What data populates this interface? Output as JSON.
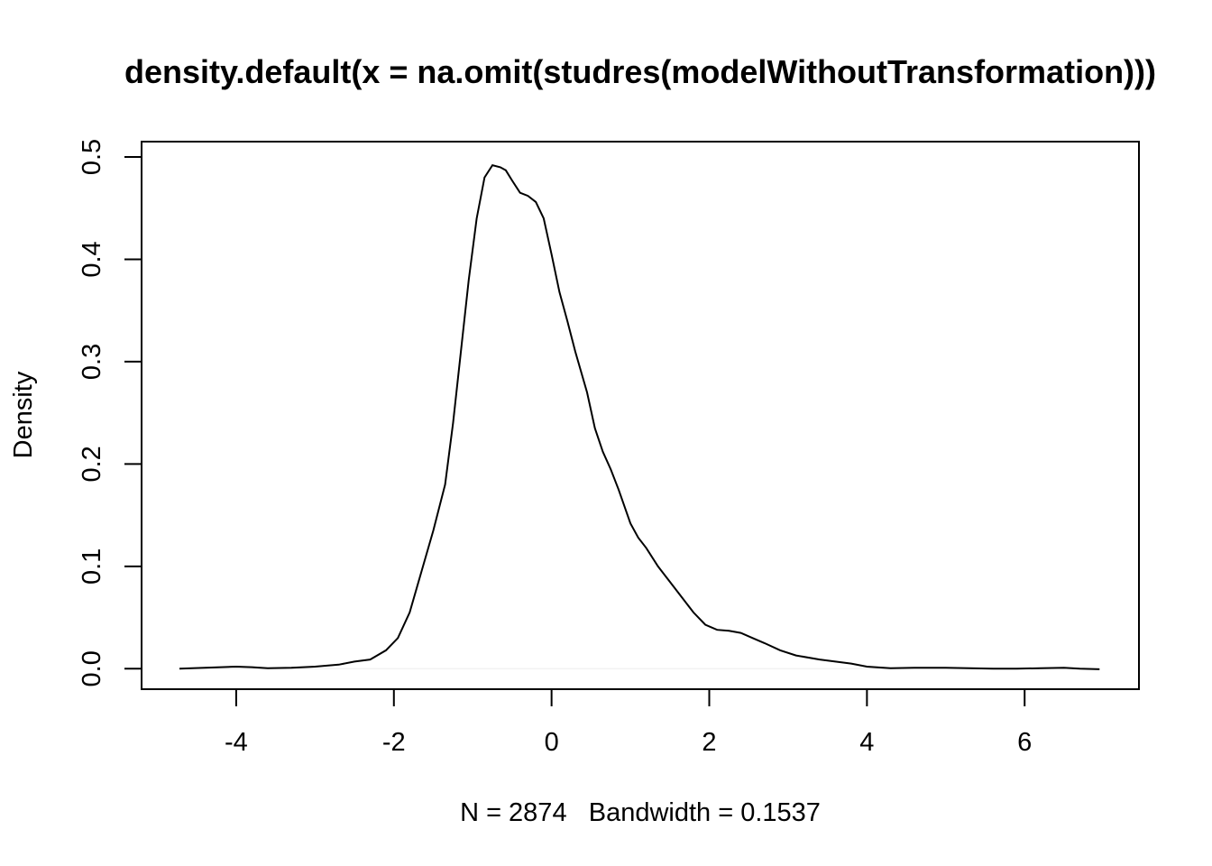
{
  "chart_data": {
    "type": "line",
    "title": "density.default(x = na.omit(studres(modelWithoutTransformation)))",
    "xlabel": "N = 2874   Bandwidth = 0.1537",
    "ylabel": "Density",
    "xlim": [
      -5.2,
      7.45
    ],
    "ylim": [
      -0.02,
      0.515
    ],
    "x_ticks": [
      -4,
      -2,
      0,
      2,
      4,
      6
    ],
    "x_tick_labels": [
      "-4",
      "-2",
      "0",
      "2",
      "4",
      "6"
    ],
    "y_ticks": [
      0.0,
      0.1,
      0.2,
      0.3,
      0.4,
      0.5
    ],
    "y_tick_labels": [
      "0.0",
      "0.1",
      "0.2",
      "0.3",
      "0.4",
      "0.5"
    ],
    "grid": false,
    "baseline_color": "#eeeeee",
    "series": [
      {
        "x": [
          -4.72,
          -4.4,
          -4.0,
          -3.8,
          -3.6,
          -3.3,
          -3.0,
          -2.7,
          -2.5,
          -2.3,
          -2.1,
          -1.95,
          -1.8,
          -1.65,
          -1.5,
          -1.35,
          -1.25,
          -1.15,
          -1.05,
          -0.95,
          -0.85,
          -0.75,
          -0.65,
          -0.58,
          -0.5,
          -0.4,
          -0.3,
          -0.2,
          -0.1,
          0.0,
          0.1,
          0.2,
          0.3,
          0.45,
          0.55,
          0.65,
          0.75,
          0.85,
          1.0,
          1.1,
          1.2,
          1.35,
          1.5,
          1.65,
          1.8,
          1.95,
          2.1,
          2.25,
          2.4,
          2.55,
          2.7,
          2.9,
          3.1,
          3.4,
          3.8,
          4.0,
          4.3,
          4.6,
          5.0,
          5.3,
          5.6,
          5.9,
          6.2,
          6.5,
          6.7,
          6.95
        ],
        "y": [
          0.0,
          0.001,
          0.002,
          0.0015,
          0.0005,
          0.001,
          0.002,
          0.004,
          0.007,
          0.009,
          0.018,
          0.03,
          0.055,
          0.095,
          0.135,
          0.18,
          0.24,
          0.31,
          0.38,
          0.44,
          0.48,
          0.492,
          0.49,
          0.487,
          0.477,
          0.465,
          0.462,
          0.456,
          0.44,
          0.405,
          0.368,
          0.34,
          0.31,
          0.27,
          0.235,
          0.212,
          0.195,
          0.175,
          0.142,
          0.128,
          0.118,
          0.1,
          0.085,
          0.07,
          0.055,
          0.043,
          0.038,
          0.037,
          0.035,
          0.03,
          0.025,
          0.018,
          0.013,
          0.009,
          0.005,
          0.002,
          0.0005,
          0.001,
          0.001,
          0.0005,
          0.0,
          0.0,
          0.0005,
          0.001,
          0.0,
          -0.0005
        ]
      }
    ]
  }
}
